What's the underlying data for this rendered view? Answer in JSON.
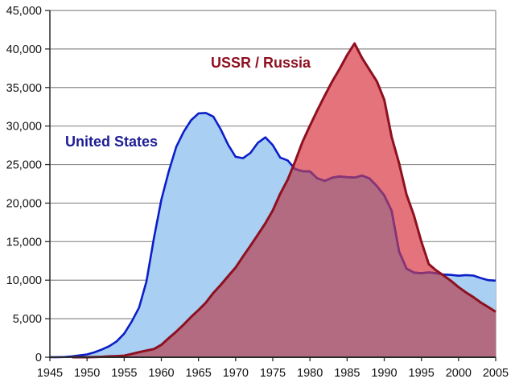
{
  "chart_data": {
    "type": "area",
    "title": "",
    "xlabel": "",
    "ylabel": "",
    "ylim": [
      0,
      45000
    ],
    "ytick_step": 5000,
    "grid": true,
    "legend_position": "inline-annotations",
    "x": [
      1945,
      1946,
      1947,
      1948,
      1949,
      1950,
      1951,
      1952,
      1953,
      1954,
      1955,
      1956,
      1957,
      1958,
      1959,
      1960,
      1961,
      1962,
      1963,
      1964,
      1965,
      1966,
      1967,
      1968,
      1969,
      1970,
      1971,
      1972,
      1973,
      1974,
      1975,
      1976,
      1977,
      1978,
      1979,
      1980,
      1981,
      1982,
      1983,
      1984,
      1985,
      1986,
      1987,
      1988,
      1989,
      1990,
      1991,
      1992,
      1993,
      1994,
      1995,
      1996,
      1997,
      1998,
      1999,
      2000,
      2001,
      2002,
      2003,
      2004,
      2005
    ],
    "xticks": [
      1945,
      1950,
      1955,
      1960,
      1965,
      1970,
      1975,
      1980,
      1985,
      1990,
      1995,
      2000,
      2005
    ],
    "series": [
      {
        "name": "United States",
        "label_color": "#1d1d96",
        "line_color": "#0b1ec8",
        "fill_color": "#a9cff3",
        "values": [
          6,
          11,
          32,
          110,
          235,
          369,
          640,
          1005,
          1436,
          2063,
          3057,
          4618,
          6444,
          9822,
          15468,
          20434,
          24111,
          27297,
          29249,
          30751,
          31642,
          31700,
          31233,
          29561,
          27552,
          26008,
          25830,
          26516,
          27835,
          28537,
          27519,
          25914,
          25542,
          24418,
          24138,
          24104,
          23208,
          22886,
          23305,
          23459,
          23368,
          23317,
          23575,
          23205,
          22217,
          21004,
          19008,
          13708,
          11511,
          10979,
          10904,
          11011,
          10903,
          10732,
          10685,
          10577,
          10660,
          10600,
          10270,
          10000,
          9940
        ]
      },
      {
        "name": "USSR / Russia",
        "label_color": "#8e1021",
        "line_color": "#8e1021",
        "fill_color": "#e5737b",
        "values": [
          0,
          0,
          0,
          0,
          1,
          5,
          25,
          50,
          120,
          150,
          200,
          426,
          660,
          869,
          1060,
          1605,
          2471,
          3322,
          4238,
          5221,
          6129,
          7089,
          8339,
          9399,
          10538,
          11643,
          13092,
          14478,
          15915,
          17385,
          19055,
          21205,
          23044,
          25393,
          27935,
          30062,
          32049,
          33952,
          35804,
          37431,
          39197,
          40723,
          38859,
          37333,
          35805,
          33417,
          28595,
          25155,
          21101,
          18399,
          14978,
          12085,
          11264,
          10600,
          9900,
          9100,
          8400,
          7800,
          7100,
          6500,
          5900
        ]
      }
    ],
    "overlap_fill": "#b26b80",
    "overlap_line": "#8b3472",
    "colors": {
      "grid": "#8c8c8c",
      "frame": "#8c8c8c",
      "axis": "#2b2b2b",
      "tick_label": "#111111",
      "background": "#ffffff"
    }
  },
  "axes": {
    "yticklabels": [
      "0",
      "5,000",
      "10,000",
      "15,000",
      "20,000",
      "25,000",
      "30,000",
      "35,000",
      "40,000",
      "45,000"
    ],
    "xticklabels": [
      "1945",
      "1950",
      "1955",
      "1960",
      "1965",
      "1970",
      "1975",
      "1980",
      "1985",
      "1990",
      "1995",
      "2000",
      "2005"
    ]
  }
}
